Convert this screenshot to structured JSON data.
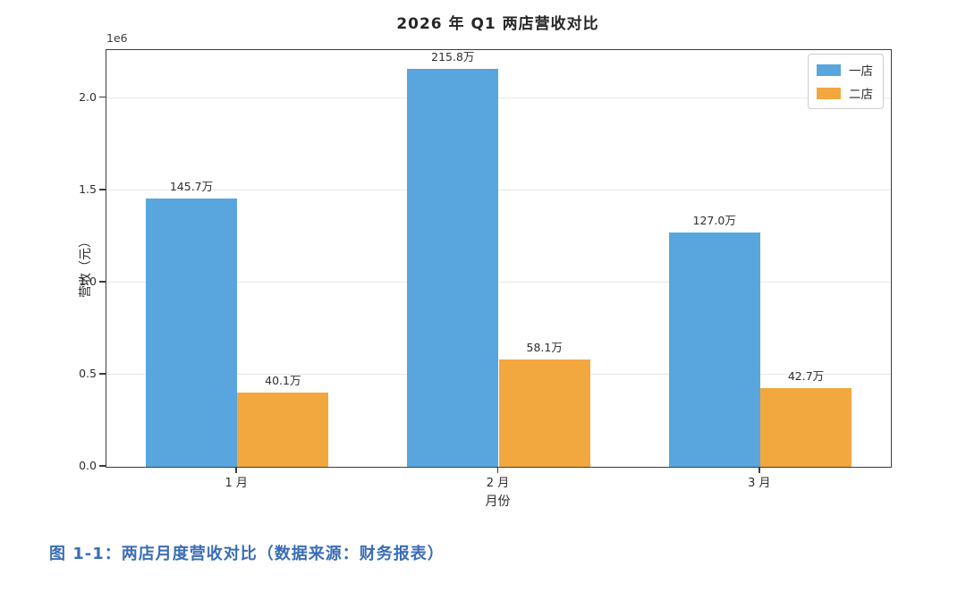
{
  "page": {
    "caption": "图 1-1：两店月度营收对比（数据来源：财务报表）"
  },
  "chart_data": {
    "type": "bar",
    "title": "2026 年 Q1 两店营收对比",
    "xlabel": "月份",
    "ylabel": "营收（元）",
    "offset_text": "1e6",
    "categories": [
      "1 月",
      "2 月",
      "3 月"
    ],
    "series": [
      {
        "name": "一店",
        "color": "#58a6dd",
        "values": [
          1457000,
          2158000,
          1270000
        ],
        "labels": [
          "145.7万",
          "215.8万",
          "127.0万"
        ]
      },
      {
        "name": "二店",
        "color": "#f3a73f",
        "values": [
          401000,
          581000,
          427000
        ],
        "labels": [
          "40.1万",
          "58.1万",
          "42.7万"
        ]
      }
    ],
    "ylim": [
      0,
      2260000
    ],
    "yticks": [
      0,
      500000,
      1000000,
      1500000,
      2000000
    ],
    "ytick_labels": [
      "0.0",
      "0.5",
      "1.0",
      "1.5",
      "2.0"
    ],
    "grid": true,
    "legend_position": "upper right",
    "colors": {
      "store1": "#58a6dd",
      "store2": "#f3a73f",
      "caption_text": "#3a6db6",
      "spine": "#3d3d3d",
      "grid": "#e8e8e8"
    }
  }
}
